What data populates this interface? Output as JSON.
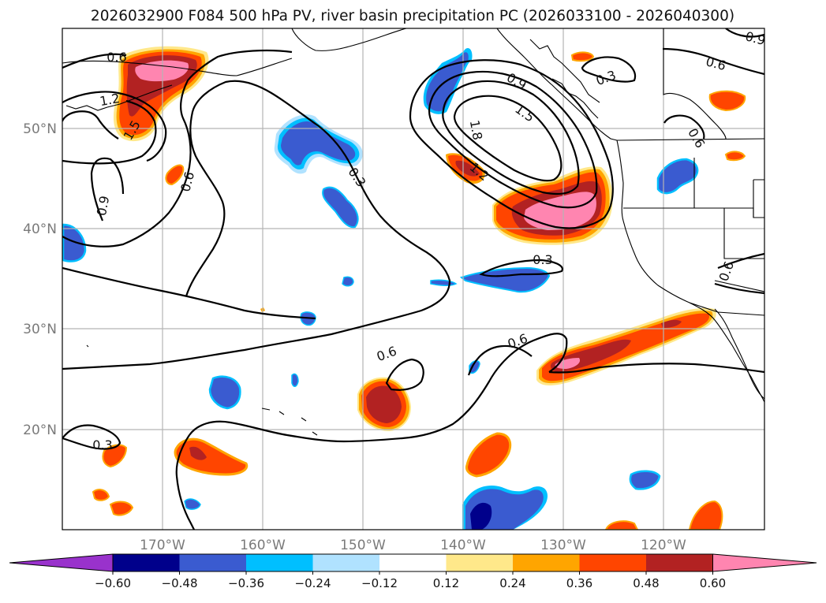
{
  "title": "2026032900 F084 500 hPa PV, river basin precipitation PC (2026033100 - 2026040300)",
  "lon_labels": [
    "170°W",
    "160°W",
    "150°W",
    "140°W",
    "130°W",
    "120°W"
  ],
  "lat_labels": [
    "50°N",
    "40°N",
    "30°N",
    "20°N"
  ],
  "contour_labels": {
    "c06a": "0.6",
    "c12a": "1.2",
    "c15a": "1.5",
    "c06b": "0.6",
    "c09a": "0.9",
    "c03a": "0.3",
    "c09b": "0.9",
    "c15b": "1.5",
    "c18": "1.8",
    "c12b": "1.2",
    "c03b": "0.3",
    "c06c": "0.6",
    "c09c": "0.9",
    "c06d": "0.6",
    "c06e": "0.6",
    "c03c": "0.3",
    "c06f": "0.6",
    "c06g": "0.6",
    "c03d": "0.3"
  },
  "colorbar": {
    "labels": [
      "−0.60",
      "−0.48",
      "−0.36",
      "−0.24",
      "−0.12",
      "0.12",
      "0.24",
      "0.36",
      "0.48",
      "0.60"
    ],
    "colors": [
      "#9932cc",
      "#00008b",
      "#3a5bd0",
      "#00bfff",
      "#b0e2ff",
      "#ffffff",
      "#ffe88a",
      "#ffa500",
      "#ff4500",
      "#b22222",
      "#ff85b0",
      "#ff85b0"
    ]
  },
  "colors": {
    "neg_dark": "#00008b",
    "neg_mid": "#3a5bd0",
    "neg_light": "#00bfff",
    "neg_pale": "#b0e2ff",
    "pos_pale": "#ffe88a",
    "pos_light": "#ffa500",
    "pos_mid": "#ff4500",
    "pos_dark": "#b22222",
    "pos_max": "#ff85b0"
  }
}
